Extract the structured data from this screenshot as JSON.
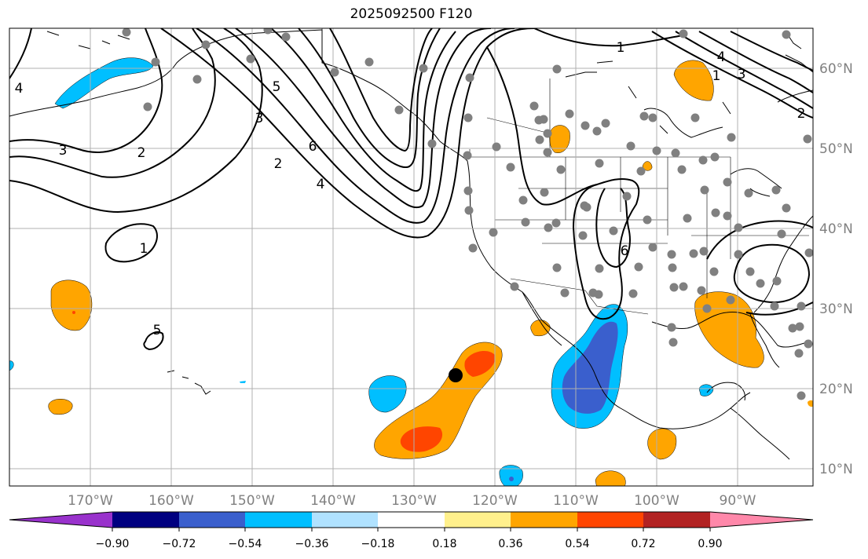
{
  "title": "2025092500 F120",
  "map": {
    "lon_labels": [
      "170°W",
      "160°W",
      "150°W",
      "140°W",
      "130°W",
      "120°W",
      "110°W",
      "100°W",
      "90°W"
    ],
    "lat_labels": [
      "60°N",
      "50°N",
      "40°N",
      "30°N",
      "20°N",
      "10°N"
    ],
    "grid": true,
    "contour_labels": [
      "1",
      "2",
      "3",
      "4",
      "5",
      "6",
      "1",
      "2",
      "3",
      "4",
      "5",
      "6",
      "1",
      "2",
      "3",
      "4"
    ],
    "station_marker_color": "#808080",
    "highlight_marker_color": "#000000"
  },
  "colorbar": {
    "ticks": [
      "−0.90",
      "−0.72",
      "−0.54",
      "−0.36",
      "−0.18",
      "0.18",
      "0.36",
      "0.54",
      "0.72",
      "0.90"
    ],
    "colors": [
      "#9932cc",
      "#000080",
      "#3a5fcd",
      "#00bfff",
      "#b0e2ff",
      "#ffffff",
      "#fff08c",
      "#ffa500",
      "#ff4500",
      "#b22222",
      "#ff88aa"
    ]
  }
}
